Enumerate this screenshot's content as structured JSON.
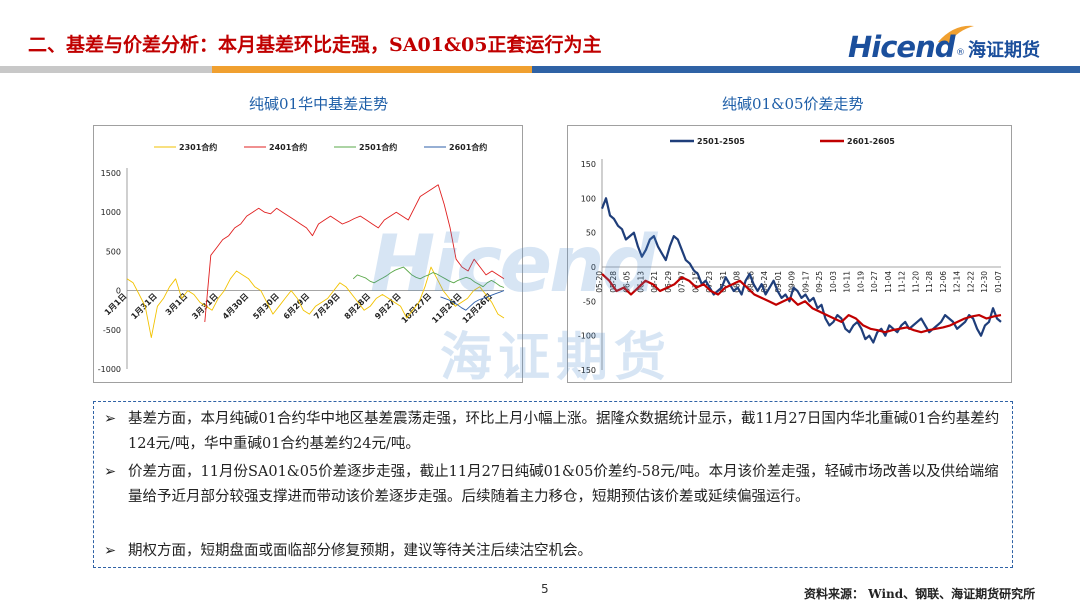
{
  "header": {
    "title": "二、基差与价差分析：本月基差环比走强，SA01&05正套运行为主",
    "logo_text": "Hicend",
    "logo_reg": "®",
    "logo_cn": "海证期货"
  },
  "colors": {
    "title_red": "#c00000",
    "brand_blue": "#1b4f9c",
    "stripe_gray": "#c8c8c8",
    "stripe_orange": "#f0a030",
    "stripe_blue": "#2f62a5"
  },
  "chart_data": [
    {
      "type": "line",
      "title": "纯碱01华中基差走势",
      "legend_position": "top",
      "ylim": [
        -1000,
        1500
      ],
      "yticks": [
        -1000,
        -500,
        0,
        500,
        1000,
        1500
      ],
      "x_ticks": [
        "1月1日",
        "1月31日",
        "3月1日",
        "3月31日",
        "4月30日",
        "5月30日",
        "6月29日",
        "7月29日",
        "8月28日",
        "9月27日",
        "10月27日",
        "11月26日",
        "12月26日"
      ],
      "series": [
        {
          "name": "2301合约",
          "color": "#f2c200",
          "values": [
            150,
            100,
            -50,
            -200,
            -600,
            -200,
            -100,
            50,
            150,
            -100,
            0,
            -50,
            -150,
            -200,
            -250,
            -100,
            0,
            150,
            250,
            200,
            150,
            50,
            0,
            -150,
            -300,
            -200,
            -100,
            0,
            -100,
            -250,
            -300,
            -200,
            -150,
            -100,
            0,
            100,
            50,
            -50,
            -150,
            -250,
            -200,
            -100,
            -50,
            -100,
            -150,
            -200,
            -350,
            -250,
            -150,
            50,
            300,
            150,
            0,
            -100,
            -200,
            -150,
            -100,
            0,
            50,
            -50,
            -150,
            -300,
            -350
          ]
        },
        {
          "name": "2401合约",
          "color": "#e02020",
          "values": [
            null,
            null,
            null,
            null,
            null,
            null,
            null,
            null,
            null,
            null,
            null,
            null,
            null,
            -400,
            450,
            550,
            650,
            700,
            800,
            850,
            950,
            1000,
            1050,
            1000,
            980,
            1050,
            1000,
            950,
            900,
            850,
            800,
            700,
            850,
            900,
            950,
            900,
            850,
            880,
            920,
            950,
            900,
            850,
            800,
            900,
            950,
            1000,
            950,
            900,
            1050,
            1200,
            1250,
            1300,
            1350,
            1100,
            800,
            400,
            300,
            250,
            400,
            300,
            200,
            250,
            200,
            150
          ]
        },
        {
          "name": "2501合约",
          "color": "#5aa84a",
          "values": [
            null,
            null,
            null,
            null,
            null,
            null,
            null,
            null,
            null,
            null,
            null,
            null,
            null,
            null,
            null,
            null,
            null,
            null,
            null,
            null,
            null,
            null,
            null,
            null,
            null,
            null,
            null,
            null,
            null,
            null,
            null,
            null,
            null,
            null,
            null,
            null,
            null,
            null,
            null,
            null,
            null,
            null,
            null,
            null,
            null,
            null,
            null,
            null,
            null,
            null,
            null,
            null,
            null,
            null,
            150,
            200,
            180,
            160,
            120,
            100,
            130,
            160,
            190,
            230,
            260,
            280,
            300,
            250,
            200,
            170,
            150,
            180,
            200,
            230,
            210,
            180,
            150,
            120,
            100,
            130,
            150,
            170,
            150,
            110,
            80,
            50,
            100,
            130,
            100,
            60,
            40
          ]
        },
        {
          "name": "2601合约",
          "color": "#2e5fa8",
          "values": [
            null,
            null,
            null,
            null,
            null,
            null,
            null,
            null,
            null,
            null,
            null,
            null,
            null,
            null,
            null,
            null,
            null,
            null,
            null,
            null,
            null,
            null,
            null,
            null,
            null,
            null,
            null,
            null,
            null,
            null,
            null,
            null,
            null,
            null,
            null,
            null,
            null,
            null,
            null,
            null,
            null,
            null,
            null,
            null,
            null,
            null,
            null,
            null,
            null,
            null,
            null,
            null,
            null,
            null,
            null,
            null,
            null,
            null,
            null,
            null,
            null,
            null,
            null,
            null,
            null,
            null,
            null,
            null,
            null,
            null,
            null,
            null,
            null,
            null,
            -80,
            -100,
            -120,
            -150,
            -180,
            -220,
            -250,
            -200,
            -150,
            -120,
            -100,
            -80,
            -60,
            -40,
            -20,
            0
          ]
        }
      ]
    },
    {
      "type": "line",
      "title": "纯碱01&05价差走势",
      "legend_position": "top",
      "ylim": [
        -150,
        150
      ],
      "yticks": [
        -150,
        -100,
        -50,
        0,
        50,
        100,
        150
      ],
      "x_ticks": [
        "05-20",
        "05-28",
        "06-05",
        "06-13",
        "06-21",
        "06-29",
        "07-07",
        "07-15",
        "07-23",
        "07-31",
        "08-08",
        "08-16",
        "08-24",
        "09-01",
        "09-09",
        "09-17",
        "09-25",
        "10-03",
        "10-11",
        "10-19",
        "10-27",
        "11-04",
        "11-12",
        "11-20",
        "11-28",
        "12-06",
        "12-14",
        "12-22",
        "12-30",
        "01-07"
      ],
      "series": [
        {
          "name": "2501-2505",
          "color": "#1f3e7a",
          "values": [
            85,
            100,
            75,
            70,
            60,
            55,
            40,
            45,
            50,
            30,
            15,
            25,
            40,
            45,
            30,
            20,
            10,
            30,
            45,
            40,
            25,
            10,
            5,
            -5,
            -10,
            -25,
            -20,
            -30,
            -40,
            -35,
            -30,
            -15,
            -25,
            -35,
            -30,
            -40,
            -20,
            -10,
            -25,
            -35,
            -25,
            -40,
            -30,
            -20,
            -35,
            -45,
            -40,
            -50,
            -30,
            -35,
            -45,
            -40,
            -50,
            -45,
            -60,
            -55,
            -75,
            -85,
            -80,
            -70,
            -75,
            -90,
            -95,
            -85,
            -80,
            -90,
            -105,
            -100,
            -110,
            -95,
            -90,
            -100,
            -85,
            -90,
            -95,
            -85,
            -80,
            -90,
            -85,
            -80,
            -75,
            -85,
            -95,
            -90,
            -85,
            -80,
            -70,
            -75,
            -80,
            -90,
            -85,
            -80,
            -70,
            -75,
            -90,
            -100,
            -85,
            -80,
            -60,
            -75,
            -80
          ]
        },
        {
          "name": "2601-2605",
          "color": "#c00000",
          "values": [
            -10,
            -20,
            -35,
            -30,
            -40,
            -30,
            -20,
            -25,
            -35,
            -30,
            -25,
            -15,
            -20,
            -30,
            -25,
            -35,
            -40,
            -30,
            -25,
            -20,
            -30,
            -40,
            -45,
            -50,
            -55,
            -50,
            -45,
            -55,
            -50,
            -60,
            -65,
            -70,
            -75,
            -80,
            -70,
            -75,
            -85,
            -90,
            -92,
            -95,
            -92,
            -90,
            -88,
            -92,
            -95,
            -92,
            -90,
            -88,
            -85,
            -80,
            -75,
            -72,
            -70,
            -75,
            -72,
            -70
          ]
        }
      ]
    }
  ],
  "watermark": {
    "text": "Hicend",
    "cn": "海证期货"
  },
  "notes": [
    {
      "arrow": "➢",
      "text": "基差方面，本月纯碱01合约华中地区基差震荡走强，环比上月小幅上涨。据隆众数据统计显示，截11月27日国内华北重碱01合约基差约124元/吨，华中重碱01合约基差约24元/吨。"
    },
    {
      "arrow": "➢",
      "text": "价差方面，11月份SA01&05价差逐步走强，截止11月27日纯碱01&05价差约-58元/吨。本月该价差走强，轻碱市场改善以及供给端缩量给予近月部分较强支撑进而带动该价差逐步走强。后续随着主力移仓，短期预估该价差或延续偏强运行。"
    },
    {
      "arrow": "➢",
      "text": "期权方面，短期盘面或面临部分修复预期，建议等待关注后续沽空机会。"
    }
  ],
  "footer": {
    "page_number": "5",
    "source": "资料来源：  Wind、钢联、海证期货研究所"
  }
}
